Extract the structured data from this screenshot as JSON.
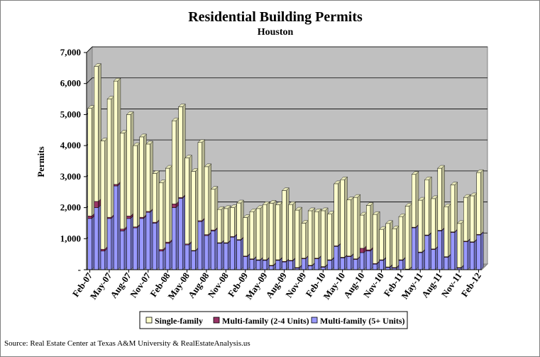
{
  "chart_data": {
    "type": "bar",
    "stacked": true,
    "three_d": true,
    "title": "Residential Building Permits",
    "subtitle": "Houston",
    "ylabel": "Permits",
    "xlabel": "",
    "ylim": [
      0,
      7000
    ],
    "yticks": [
      0,
      1000,
      2000,
      3000,
      4000,
      5000,
      6000,
      7000
    ],
    "ytick_labels": [
      "-",
      "1,000",
      "2,000",
      "3,000",
      "4,000",
      "5,000",
      "6,000",
      "7,000"
    ],
    "x_tick_labels": [
      "Feb-07",
      "May-07",
      "Aug-07",
      "Nov-07",
      "Feb-08",
      "May-08",
      "Aug-08",
      "Nov-08",
      "Feb-09",
      "May-09",
      "Aug-09",
      "Nov-09",
      "Feb-10",
      "May-10",
      "Aug-10",
      "Nov-10",
      "Feb-11",
      "May-11",
      "Aug-11",
      "Nov-11",
      "Feb-12"
    ],
    "x_tick_every": 3,
    "categories": [
      "Feb-07",
      "Mar-07",
      "Apr-07",
      "May-07",
      "Jun-07",
      "Jul-07",
      "Aug-07",
      "Sep-07",
      "Oct-07",
      "Nov-07",
      "Dec-07",
      "Jan-08",
      "Feb-08",
      "Mar-08",
      "Apr-08",
      "May-08",
      "Jun-08",
      "Jul-08",
      "Aug-08",
      "Sep-08",
      "Oct-08",
      "Nov-08",
      "Dec-08",
      "Jan-09",
      "Feb-09",
      "Mar-09",
      "Apr-09",
      "May-09",
      "Jun-09",
      "Jul-09",
      "Aug-09",
      "Sep-09",
      "Oct-09",
      "Nov-09",
      "Dec-09",
      "Jan-10",
      "Feb-10",
      "Mar-10",
      "Apr-10",
      "May-10",
      "Jun-10",
      "Jul-10",
      "Aug-10",
      "Sep-10",
      "Oct-10",
      "Nov-10",
      "Dec-10",
      "Jan-11",
      "Feb-11",
      "Mar-11",
      "Apr-11",
      "May-11",
      "Jun-11",
      "Jul-11",
      "Aug-11",
      "Sep-11",
      "Oct-11",
      "Nov-11",
      "Dec-11",
      "Jan-12",
      "Feb-12"
    ],
    "series": [
      {
        "name": "Multi-family (5+ Units)",
        "color": "#9999ff",
        "values": [
          1650,
          2000,
          600,
          1650,
          2700,
          1250,
          1650,
          1350,
          1650,
          1850,
          1500,
          600,
          850,
          2000,
          2300,
          800,
          600,
          1550,
          1100,
          1250,
          850,
          850,
          1050,
          950,
          420,
          330,
          300,
          300,
          120,
          300,
          250,
          280,
          50,
          350,
          120,
          350,
          80,
          300,
          750,
          380,
          420,
          330,
          550,
          600,
          180,
          300,
          70,
          50,
          300,
          0,
          1350,
          550,
          1100,
          650,
          1250,
          400,
          1200,
          50,
          900,
          880,
          1120
        ]
      },
      {
        "name": "Multi-family (2-4 Units)",
        "color": "#993366",
        "values": [
          80,
          200,
          60,
          40,
          50,
          60,
          80,
          30,
          40,
          30,
          30,
          50,
          40,
          120,
          30,
          30,
          20,
          30,
          30,
          30,
          20,
          20,
          20,
          20,
          20,
          20,
          20,
          20,
          20,
          20,
          20,
          20,
          20,
          20,
          20,
          20,
          20,
          20,
          20,
          20,
          20,
          20,
          140,
          40,
          20,
          20,
          20,
          20,
          20,
          20,
          20,
          20,
          20,
          20,
          20,
          20,
          20,
          20,
          20,
          20,
          20
        ]
      },
      {
        "name": "Single-family",
        "color": "#ffffcc",
        "values": [
          3470,
          4350,
          3490,
          3810,
          3330,
          3090,
          3270,
          2620,
          2590,
          2170,
          1570,
          2150,
          2380,
          2680,
          2920,
          2770,
          2550,
          2520,
          2190,
          1310,
          1070,
          1100,
          930,
          1180,
          1240,
          1520,
          1650,
          1780,
          2000,
          1770,
          2280,
          1800,
          1850,
          1130,
          1760,
          1500,
          1800,
          1470,
          2000,
          2500,
          1810,
          1980,
          1070,
          1430,
          1580,
          980,
          1400,
          1250,
          1390,
          2030,
          1700,
          1670,
          1780,
          1620,
          2000,
          1610,
          1510,
          1420,
          1410,
          1480,
          1990
        ]
      }
    ],
    "legend_position": "bottom",
    "grid": true,
    "plot_background": "#c0c0c0",
    "source": "Source: Real Estate Center at Texas A&M University & RealEstateAnalysis.us"
  }
}
